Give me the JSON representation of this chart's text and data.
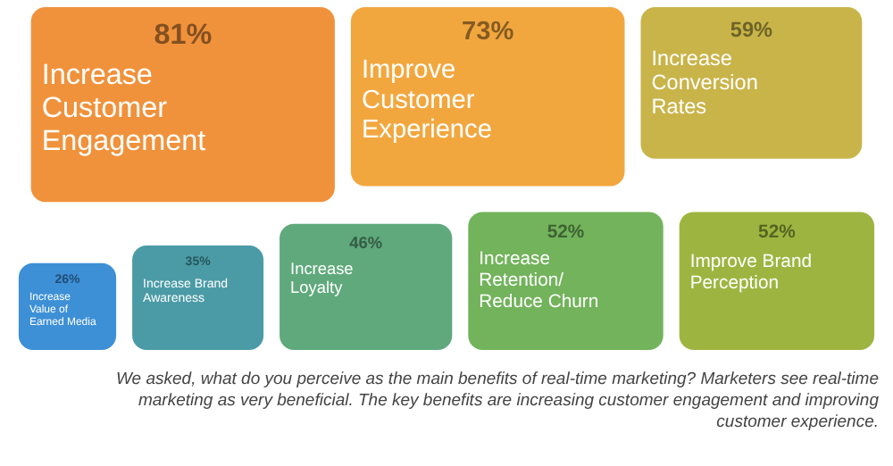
{
  "chart_data": {
    "type": "other",
    "categories": [
      "Increase Customer Engagement",
      "Improve Customer Experience",
      "Increase Conversion Rates",
      "Increase Value of Earned Media",
      "Increase Brand Awareness",
      "Increase Loyalty",
      "Increase Retention/ Reduce Churn",
      "Improve Brand Perception"
    ],
    "values": [
      81,
      73,
      59,
      26,
      35,
      46,
      52,
      52
    ],
    "value_labels": [
      "81%",
      "73%",
      "59%",
      "26%",
      "35%",
      "46%",
      "52%",
      "52%"
    ],
    "colors": [
      "#f0923b",
      "#f2a73e",
      "#c9b449",
      "#3d8fd6",
      "#4a9ba6",
      "#5fa97c",
      "#72b35b",
      "#9db540"
    ],
    "annotations": [
      "We asked, what do you perceive as the main benefits of real-time marketing? Marketers see real-time marketing as very beneficial. The key benefits are increasing customer engagement and improving customer experience."
    ]
  }
}
